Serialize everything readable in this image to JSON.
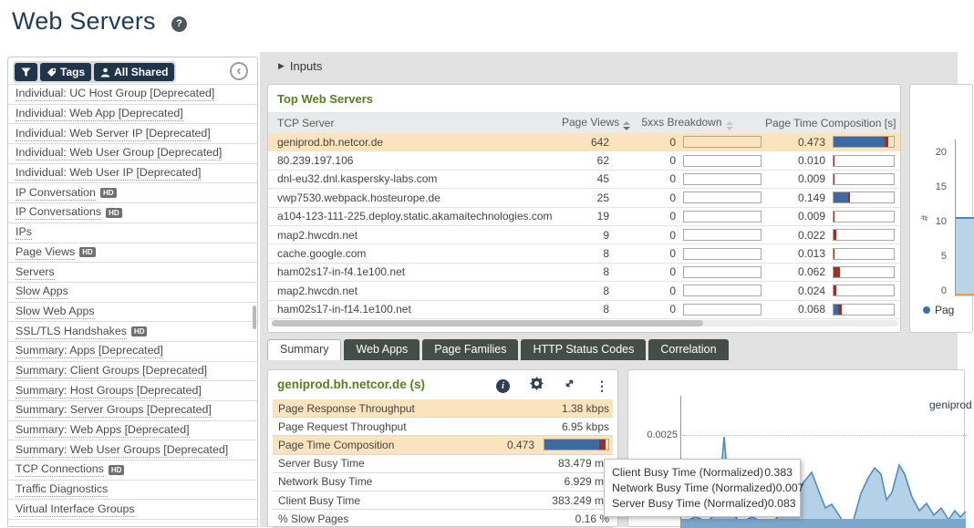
{
  "page": {
    "title": "Web Servers",
    "help_icon": "?"
  },
  "sidebar": {
    "tags_button": "Tags",
    "all_shared_button": "All Shared",
    "collapse_glyph": "‹",
    "hd_badge": "HD",
    "items": [
      {
        "label": "Individual: UC Host Group [Deprecated]",
        "hd": false
      },
      {
        "label": "Individual: Web App [Deprecated]",
        "hd": false
      },
      {
        "label": "Individual: Web Server IP [Deprecated]",
        "hd": false
      },
      {
        "label": "Individual: Web User Group [Deprecated]",
        "hd": false
      },
      {
        "label": "Individual: Web User IP [Deprecated]",
        "hd": false
      },
      {
        "label": "IP Conversation",
        "hd": true
      },
      {
        "label": "IP Conversations",
        "hd": true
      },
      {
        "label": "IPs",
        "hd": false
      },
      {
        "label": "Page Views",
        "hd": true
      },
      {
        "label": "Servers",
        "hd": false
      },
      {
        "label": "Slow Apps",
        "hd": false
      },
      {
        "label": "Slow Web Apps",
        "hd": false
      },
      {
        "label": "SSL/TLS Handshakes",
        "hd": true
      },
      {
        "label": "Summary: Apps [Deprecated]",
        "hd": false
      },
      {
        "label": "Summary: Client Groups [Deprecated]",
        "hd": false
      },
      {
        "label": "Summary: Host Groups [Deprecated]",
        "hd": false
      },
      {
        "label": "Summary: Server Groups [Deprecated]",
        "hd": false
      },
      {
        "label": "Summary: Web Apps [Deprecated]",
        "hd": false
      },
      {
        "label": "Summary: Web User Groups [Deprecated]",
        "hd": false
      },
      {
        "label": "TCP Connections",
        "hd": true
      },
      {
        "label": "Traffic Diagnostics",
        "hd": false
      },
      {
        "label": "Virtual Interface Groups",
        "hd": false
      }
    ]
  },
  "inputs_bar": {
    "triangle": "▶",
    "label": "Inputs"
  },
  "top_web_servers": {
    "title": "Top Web Servers",
    "columns": {
      "server": "TCP Server",
      "page_views": "Page Views",
      "five_xxs": "5xxs Breakdown",
      "ptc": "Page Time Composition [s]"
    },
    "rows": [
      {
        "server": "geniprod.bh.netcor.de",
        "page_views": "642",
        "five_xxs": "0",
        "ptc": "0.473",
        "blue": 85,
        "red": 6,
        "highlighted": true
      },
      {
        "server": "80.239.197.106",
        "page_views": "62",
        "five_xxs": "0",
        "ptc": "0.010",
        "blue": 0,
        "red": 2,
        "highlighted": false
      },
      {
        "server": "dnl-eu32.dnl.kaspersky-labs.com",
        "page_views": "45",
        "five_xxs": "0",
        "ptc": "0.009",
        "blue": 0,
        "red": 2,
        "highlighted": false
      },
      {
        "server": "vwp7530.webpack.hosteurope.de",
        "page_views": "25",
        "five_xxs": "0",
        "ptc": "0.149",
        "blue": 24,
        "red": 4,
        "highlighted": false
      },
      {
        "server": "a104-123-111-225.deploy.static.akamaitechnologies.com",
        "page_views": "19",
        "five_xxs": "0",
        "ptc": "0.009",
        "blue": 0,
        "red": 2,
        "highlighted": false
      },
      {
        "server": "map2.hwcdn.net",
        "page_views": "9",
        "five_xxs": "0",
        "ptc": "0.022",
        "blue": 0,
        "red": 4,
        "highlighted": false
      },
      {
        "server": "cache.google.com",
        "page_views": "8",
        "five_xxs": "0",
        "ptc": "0.013",
        "blue": 0,
        "red": 2,
        "highlighted": false
      },
      {
        "server": "ham02s17-in-f4.1e100.net",
        "page_views": "8",
        "five_xxs": "0",
        "ptc": "0.062",
        "blue": 0,
        "red": 11,
        "highlighted": false
      },
      {
        "server": "map2.hwcdn.net",
        "page_views": "8",
        "five_xxs": "0",
        "ptc": "0.024",
        "blue": 0,
        "red": 4,
        "highlighted": false
      },
      {
        "server": "ham02s17-in-f14.1e100.net",
        "page_views": "8",
        "five_xxs": "0",
        "ptc": "0.068",
        "blue": 7,
        "red": 7,
        "highlighted": false
      }
    ]
  },
  "right_chart": {
    "y_ticks": [
      "20",
      "15",
      "10",
      "5",
      "0"
    ],
    "y_axis_label": "#",
    "legend_label": "Pag"
  },
  "tabs": [
    {
      "label": "Summary",
      "active": true
    },
    {
      "label": "Web Apps",
      "active": false
    },
    {
      "label": "Page Families",
      "active": false
    },
    {
      "label": "HTTP Status Codes",
      "active": false
    },
    {
      "label": "Correlation",
      "active": false
    }
  ],
  "summary_panel": {
    "title": "geniprod.bh.netcor.de (s)",
    "metrics": [
      {
        "label": "Page Response Throughput",
        "value": "1.38 kbps",
        "highlighted": true,
        "bar": false
      },
      {
        "label": "Page Request Throughput",
        "value": "6.95 kbps",
        "highlighted": false,
        "bar": false
      },
      {
        "label": "Page Time Composition",
        "value": "0.473",
        "highlighted": true,
        "bar": true,
        "blue": 85,
        "red": 10
      },
      {
        "label": "Server Busy Time",
        "value": "83.479 ms",
        "highlighted": false,
        "bar": false
      },
      {
        "label": "Network Busy Time",
        "value": "6.929 ms",
        "highlighted": false,
        "bar": false
      },
      {
        "label": "Client Busy Time",
        "value": "383.249 ms",
        "highlighted": false,
        "bar": false
      },
      {
        "label": "% Slow Pages",
        "value": "0.16 %",
        "highlighted": false,
        "bar": false
      }
    ]
  },
  "bottom_chart": {
    "y_tick": "0.0025",
    "series_label": "geniprod"
  },
  "tooltip": {
    "rows": [
      {
        "label": "Client Busy Time (Normalized)",
        "value": "0.383"
      },
      {
        "label": "Network Busy Time (Normalized)",
        "value": "0.007"
      },
      {
        "label": "Server Busy Time (Normalized)",
        "value": "0.083"
      }
    ]
  }
}
